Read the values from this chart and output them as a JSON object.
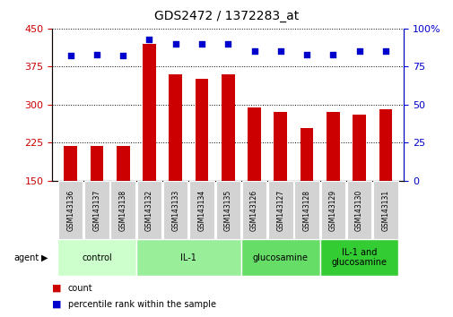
{
  "title": "GDS2472 / 1372283_at",
  "samples": [
    "GSM143136",
    "GSM143137",
    "GSM143138",
    "GSM143132",
    "GSM143133",
    "GSM143134",
    "GSM143135",
    "GSM143126",
    "GSM143127",
    "GSM143128",
    "GSM143129",
    "GSM143130",
    "GSM143131"
  ],
  "counts": [
    218,
    218,
    218,
    420,
    360,
    350,
    360,
    295,
    285,
    253,
    285,
    280,
    290
  ],
  "percentile": [
    82,
    83,
    82,
    93,
    90,
    90,
    90,
    85,
    85,
    83,
    83,
    85,
    85
  ],
  "groups": [
    {
      "label": "control",
      "start": 0,
      "end": 3,
      "color": "#ccffcc"
    },
    {
      "label": "IL-1",
      "start": 3,
      "end": 7,
      "color": "#99ee99"
    },
    {
      "label": "glucosamine",
      "start": 7,
      "end": 10,
      "color": "#66dd66"
    },
    {
      "label": "IL-1 and\nglucosamine",
      "start": 10,
      "end": 13,
      "color": "#33cc33"
    }
  ],
  "ylim_left": [
    150,
    450
  ],
  "yticks_left": [
    150,
    225,
    300,
    375,
    450
  ],
  "ylim_right": [
    0,
    100
  ],
  "yticks_right": [
    0,
    25,
    50,
    75,
    100
  ],
  "bar_color": "#cc0000",
  "dot_color": "#0000cc",
  "bar_width": 0.5,
  "bg_color": "#ffffff",
  "tick_label_bg": "#cccccc",
  "agent_label": "agent",
  "legend_count_label": "count",
  "legend_pct_label": "percentile rank within the sample",
  "title_fontsize": 10,
  "label_fontsize": 8,
  "group_fontsize": 7,
  "sample_fontsize": 5.5
}
